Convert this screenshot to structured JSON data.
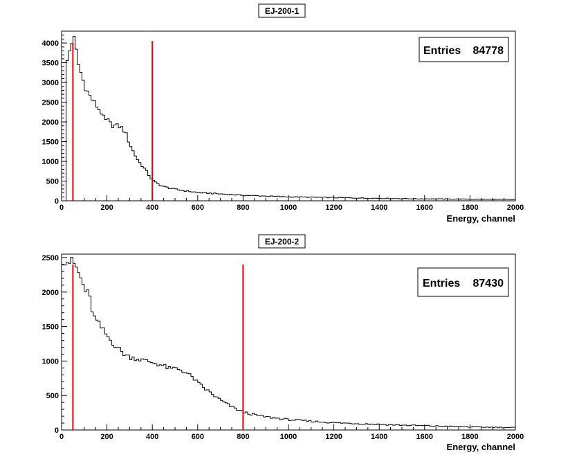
{
  "chart_data": [
    {
      "type": "histogram",
      "title": "EJ-200-1",
      "xlabel": "Energy, channel",
      "ylabel": "",
      "xlim": [
        0,
        2000
      ],
      "ylim": [
        0,
        4300
      ],
      "x_ticks": [
        0,
        200,
        400,
        600,
        800,
        1000,
        1200,
        1400,
        1600,
        1800,
        2000
      ],
      "y_ticks": [
        0,
        500,
        1000,
        1500,
        2000,
        2500,
        3000,
        3500,
        4000
      ],
      "bin_width": 10,
      "stats": {
        "label": "Entries",
        "value": "84778"
      },
      "markers": [
        {
          "x": 50,
          "ymax": 4000,
          "color": "#e00000"
        },
        {
          "x": 400,
          "ymax": 4050,
          "color": "#e00000"
        }
      ],
      "profile": [
        [
          20,
          3400
        ],
        [
          40,
          3950
        ],
        [
          50,
          4150
        ],
        [
          60,
          4000
        ],
        [
          70,
          3550
        ],
        [
          80,
          3350
        ],
        [
          90,
          3150
        ],
        [
          100,
          2950
        ],
        [
          120,
          2700
        ],
        [
          140,
          2520
        ],
        [
          160,
          2360
        ],
        [
          180,
          2200
        ],
        [
          190,
          2000
        ],
        [
          200,
          2060
        ],
        [
          220,
          1920
        ],
        [
          260,
          1880
        ],
        [
          280,
          1750
        ],
        [
          300,
          1450
        ],
        [
          320,
          1200
        ],
        [
          340,
          1000
        ],
        [
          360,
          860
        ],
        [
          380,
          700
        ],
        [
          400,
          520
        ],
        [
          420,
          440
        ],
        [
          450,
          360
        ],
        [
          500,
          290
        ],
        [
          600,
          210
        ],
        [
          800,
          140
        ],
        [
          1000,
          100
        ],
        [
          1200,
          80
        ],
        [
          1500,
          55
        ],
        [
          1800,
          40
        ],
        [
          2000,
          30
        ]
      ]
    },
    {
      "type": "histogram",
      "title": "EJ-200-2",
      "xlabel": "Energy, channel",
      "ylabel": "",
      "xlim": [
        0,
        2000
      ],
      "ylim": [
        0,
        2550
      ],
      "x_ticks": [
        0,
        200,
        400,
        600,
        800,
        1000,
        1200,
        1400,
        1600,
        1800,
        2000
      ],
      "y_ticks": [
        0,
        500,
        1000,
        1500,
        2000,
        2500
      ],
      "bin_width": 10,
      "stats": {
        "label": "Entries",
        "value": "87430"
      },
      "markers": [
        {
          "x": 50,
          "ymax": 2400,
          "color": "#e00000"
        },
        {
          "x": 800,
          "ymax": 2400,
          "color": "#e00000"
        }
      ],
      "profile": [
        [
          0,
          2480
        ],
        [
          40,
          2440
        ],
        [
          50,
          2420
        ],
        [
          60,
          2400
        ],
        [
          70,
          2300
        ],
        [
          80,
          2240
        ],
        [
          90,
          2150
        ],
        [
          100,
          2050
        ],
        [
          120,
          1950
        ],
        [
          130,
          1850
        ],
        [
          140,
          1650
        ],
        [
          160,
          1550
        ],
        [
          180,
          1460
        ],
        [
          200,
          1370
        ],
        [
          220,
          1280
        ],
        [
          240,
          1220
        ],
        [
          260,
          1150
        ],
        [
          280,
          1090
        ],
        [
          300,
          1060
        ],
        [
          350,
          1020
        ],
        [
          400,
          980
        ],
        [
          450,
          930
        ],
        [
          480,
          880
        ],
        [
          500,
          900
        ],
        [
          520,
          880
        ],
        [
          540,
          850
        ],
        [
          560,
          800
        ],
        [
          580,
          760
        ],
        [
          600,
          680
        ],
        [
          640,
          580
        ],
        [
          680,
          480
        ],
        [
          720,
          390
        ],
        [
          760,
          320
        ],
        [
          800,
          260
        ],
        [
          850,
          220
        ],
        [
          900,
          190
        ],
        [
          1000,
          150
        ],
        [
          1200,
          105
        ],
        [
          1500,
          70
        ],
        [
          1800,
          45
        ],
        [
          2000,
          35
        ]
      ]
    }
  ]
}
